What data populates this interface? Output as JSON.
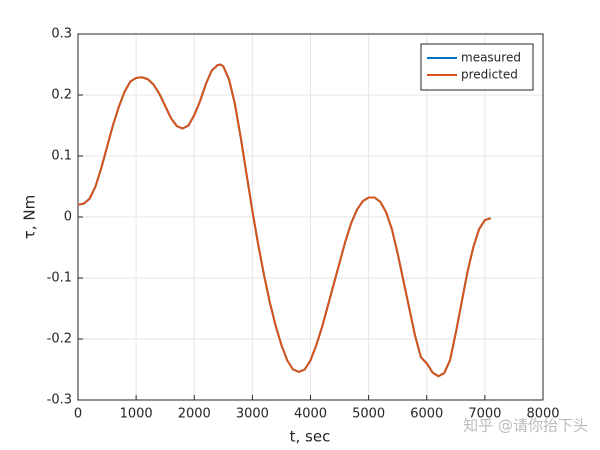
{
  "chart_data": {
    "type": "line",
    "xlabel": "t, sec",
    "ylabel": "τ, Nm",
    "x": [
      0,
      100,
      200,
      300,
      400,
      500,
      600,
      700,
      800,
      900,
      1000,
      1100,
      1200,
      1300,
      1400,
      1500,
      1600,
      1700,
      1800,
      1900,
      2000,
      2100,
      2200,
      2300,
      2400,
      2450,
      2500,
      2600,
      2700,
      2800,
      2900,
      3000,
      3100,
      3200,
      3300,
      3400,
      3500,
      3600,
      3700,
      3800,
      3900,
      4000,
      4100,
      4200,
      4300,
      4400,
      4500,
      4600,
      4700,
      4800,
      4900,
      5000,
      5100,
      5200,
      5300,
      5400,
      5500,
      5600,
      5700,
      5800,
      5900,
      6000,
      6100,
      6200,
      6300,
      6400,
      6500,
      6600,
      6700,
      6800,
      6900,
      7000,
      7100
    ],
    "series": [
      {
        "name": "measured",
        "color": "#0072bd",
        "values": [
          0.02,
          0.022,
          0.03,
          0.05,
          0.08,
          0.115,
          0.15,
          0.18,
          0.205,
          0.222,
          0.228,
          0.229,
          0.226,
          0.217,
          0.202,
          0.182,
          0.162,
          0.149,
          0.145,
          0.15,
          0.167,
          0.19,
          0.218,
          0.24,
          0.249,
          0.25,
          0.247,
          0.225,
          0.185,
          0.13,
          0.07,
          0.01,
          -0.045,
          -0.095,
          -0.14,
          -0.178,
          -0.21,
          -0.235,
          -0.25,
          -0.254,
          -0.25,
          -0.235,
          -0.21,
          -0.18,
          -0.145,
          -0.11,
          -0.075,
          -0.04,
          -0.01,
          0.012,
          0.026,
          0.032,
          0.032,
          0.025,
          0.008,
          -0.02,
          -0.06,
          -0.105,
          -0.15,
          -0.195,
          -0.23,
          -0.24,
          -0.255,
          -0.261,
          -0.256,
          -0.235,
          -0.19,
          -0.14,
          -0.09,
          -0.05,
          -0.02,
          -0.005,
          -0.002
        ]
      },
      {
        "name": "predicted",
        "color": "#d95319",
        "values": [
          0.02,
          0.022,
          0.03,
          0.05,
          0.08,
          0.115,
          0.15,
          0.18,
          0.205,
          0.222,
          0.228,
          0.229,
          0.226,
          0.217,
          0.202,
          0.182,
          0.162,
          0.149,
          0.145,
          0.15,
          0.167,
          0.19,
          0.218,
          0.24,
          0.249,
          0.25,
          0.247,
          0.225,
          0.185,
          0.13,
          0.07,
          0.01,
          -0.045,
          -0.095,
          -0.14,
          -0.178,
          -0.21,
          -0.235,
          -0.25,
          -0.254,
          -0.25,
          -0.235,
          -0.21,
          -0.18,
          -0.145,
          -0.11,
          -0.075,
          -0.04,
          -0.01,
          0.012,
          0.026,
          0.032,
          0.032,
          0.025,
          0.008,
          -0.02,
          -0.06,
          -0.105,
          -0.15,
          -0.195,
          -0.23,
          -0.24,
          -0.255,
          -0.261,
          -0.256,
          -0.235,
          -0.19,
          -0.14,
          -0.09,
          -0.05,
          -0.02,
          -0.005,
          -0.002
        ]
      }
    ],
    "xlim": [
      0,
      8000
    ],
    "xticks": [
      0,
      1000,
      2000,
      3000,
      4000,
      5000,
      6000,
      7000,
      8000
    ],
    "ylim": [
      -0.3,
      0.3
    ],
    "yticks": [
      -0.3,
      -0.2,
      -0.1,
      0,
      0.1,
      0.2,
      0.3
    ],
    "grid": true,
    "legend": "top-right",
    "watermark": "知乎 @请你抬下头"
  }
}
